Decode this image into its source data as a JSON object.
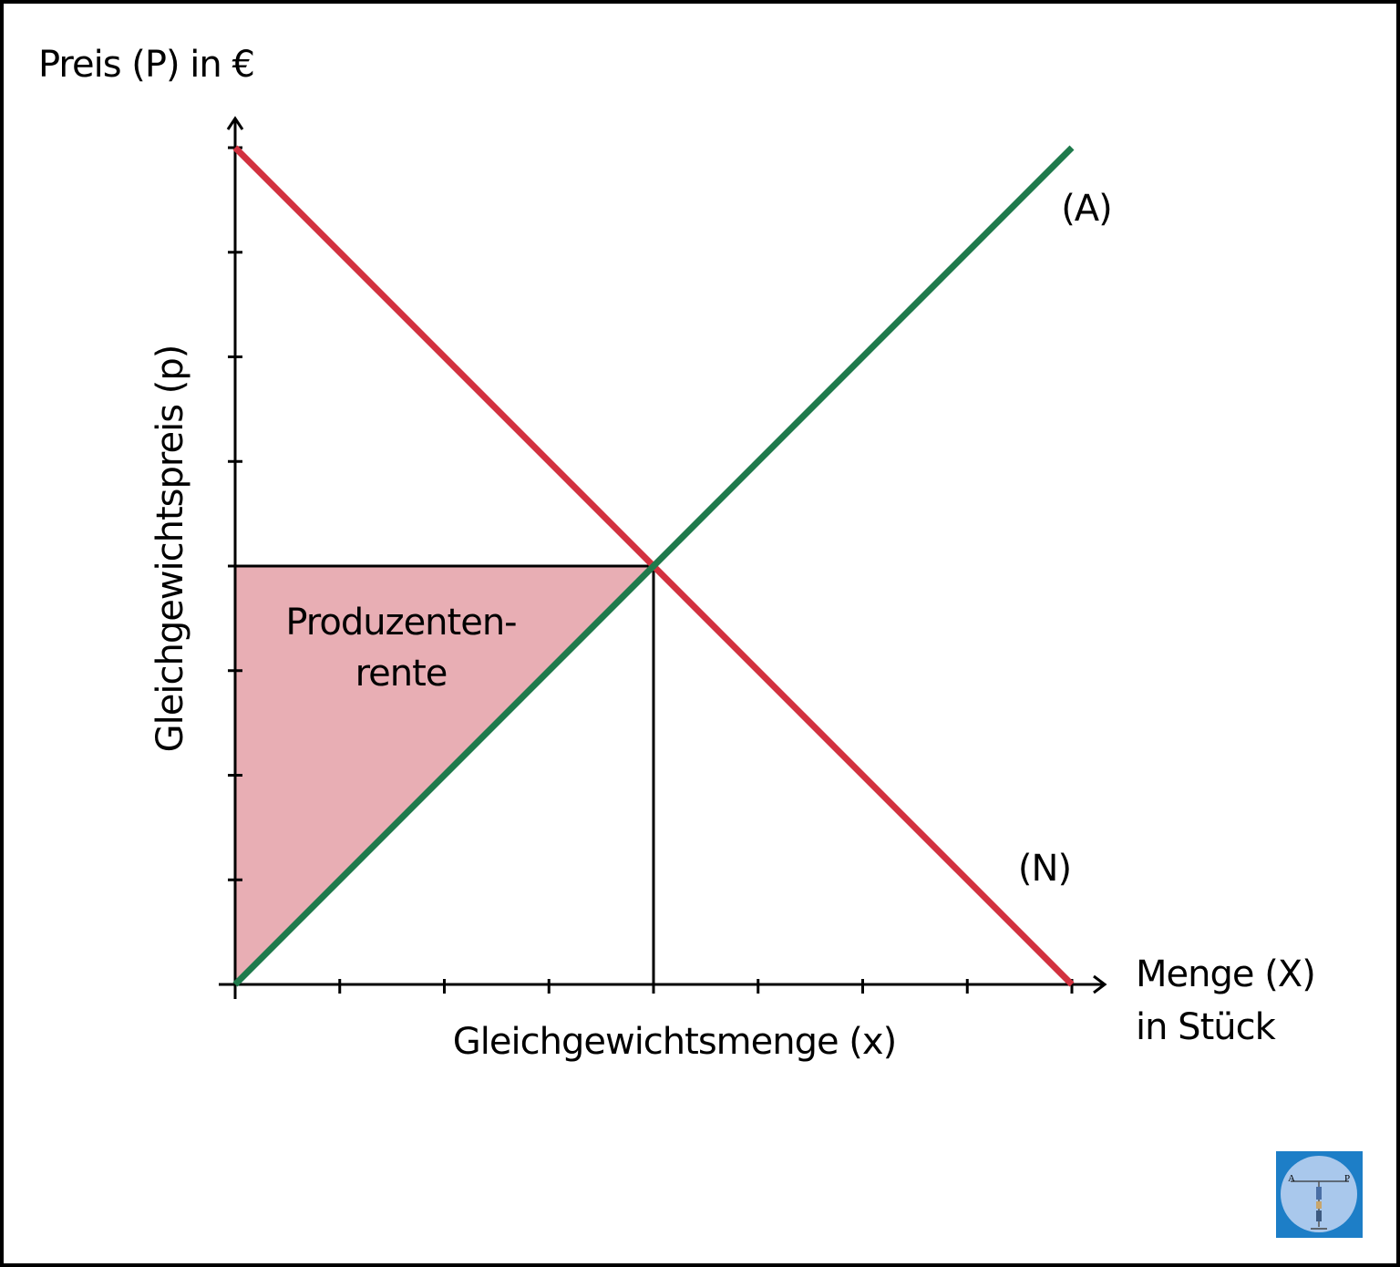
{
  "chart_data": {
    "type": "line",
    "y_axis_title": "Preis (P) in €",
    "x_axis_title_line1": "Menge (X)",
    "x_axis_title_line2": "in Stück",
    "equilibrium_price_label": "Gleichgewichtspreis (p)",
    "equilibrium_quantity_label": "Gleichgewichtsmenge (x)",
    "xlim": [
      0,
      8
    ],
    "ylim": [
      0,
      8
    ],
    "x_ticks": [
      1,
      2,
      3,
      4,
      5,
      6,
      7,
      8
    ],
    "y_ticks": [
      1,
      2,
      3,
      4,
      5,
      6,
      7,
      8
    ],
    "series": [
      {
        "name": "(N)",
        "color": "#d2313f",
        "x": [
          0,
          8
        ],
        "y": [
          8,
          0
        ]
      },
      {
        "name": "(A)",
        "color": "#1f7a4c",
        "x": [
          0,
          8
        ],
        "y": [
          0,
          8
        ]
      }
    ],
    "equilibrium": {
      "x": 4,
      "y": 4
    },
    "shaded_area": {
      "label_line1": "Produzenten-",
      "label_line2": "rente",
      "color": "#e8aeb4",
      "points": [
        [
          0,
          0
        ],
        [
          0,
          4
        ],
        [
          4,
          4
        ]
      ]
    }
  },
  "logo": {
    "text_left": "A",
    "text_right": "P",
    "background": "#1d7ec7"
  }
}
